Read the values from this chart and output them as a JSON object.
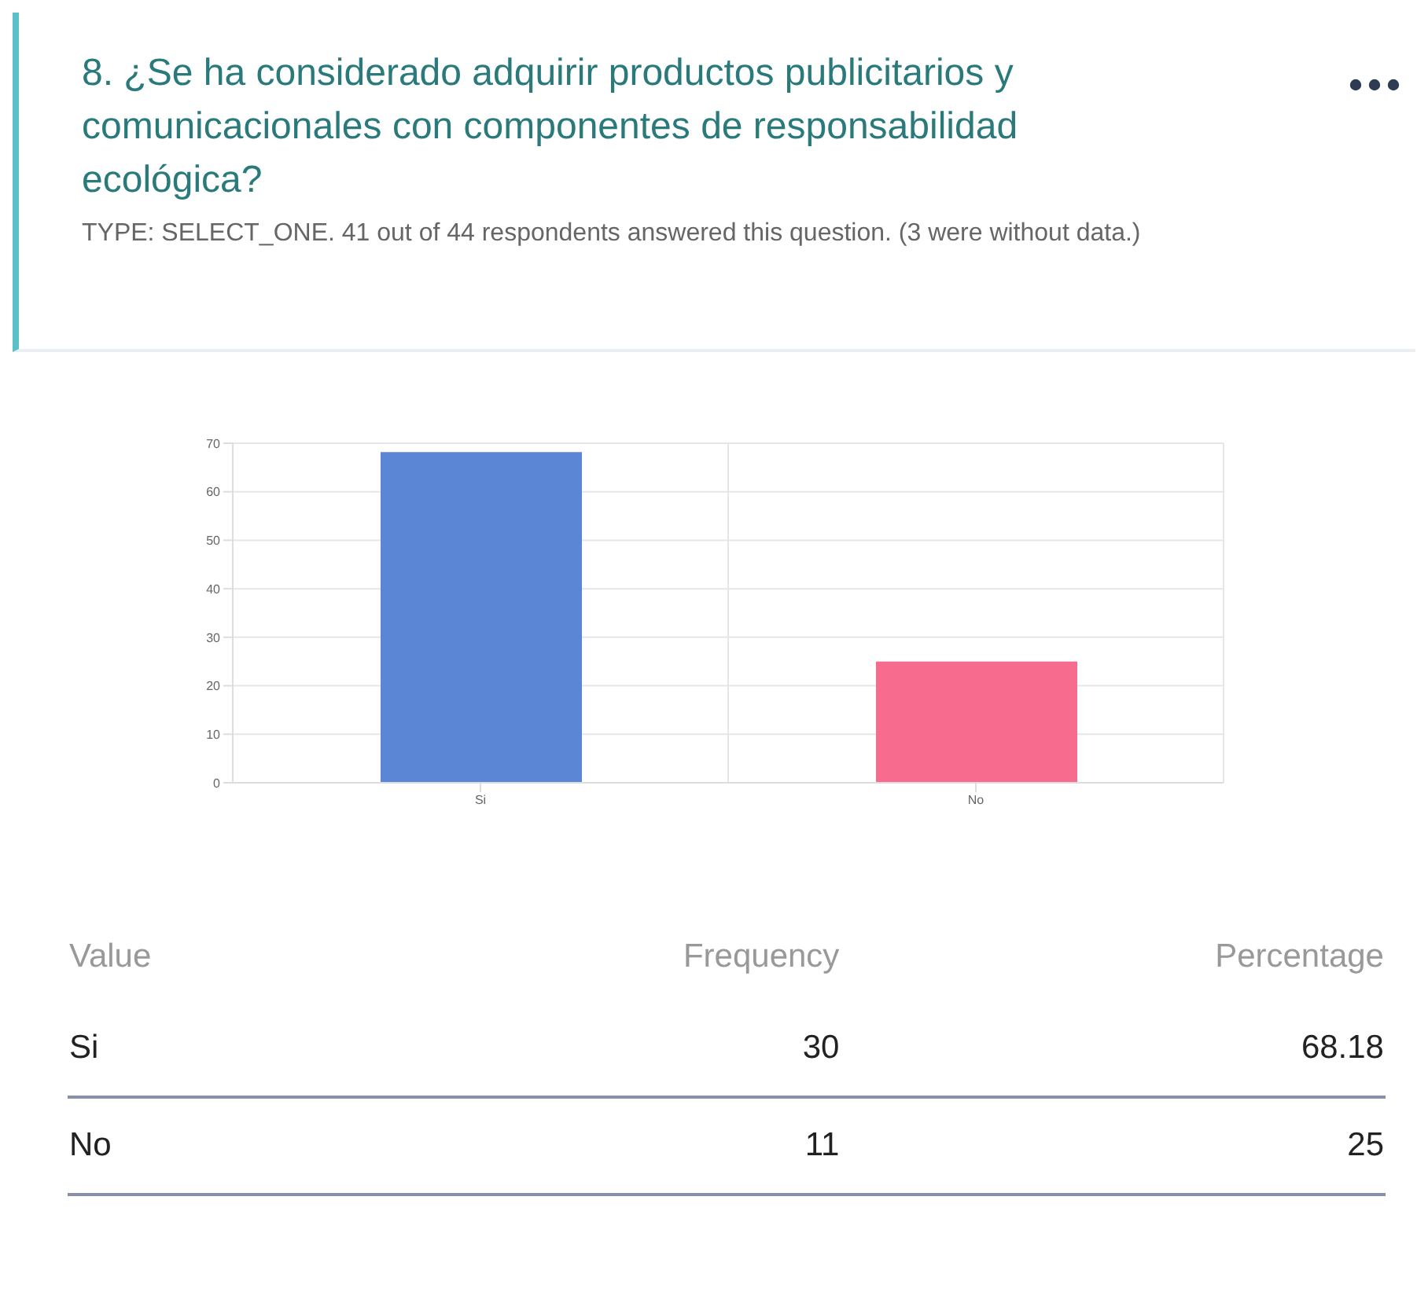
{
  "chart_data": {
    "type": "bar",
    "title": "8. ¿Se ha considerado adquirir productos publicitarios y comunicacionales con componentes de responsabilidad ecológica?",
    "subtitle": "TYPE: SELECT_ONE. 41 out of 44 respondents answered this question. (3 were without data.)",
    "categories": [
      "Si",
      "No"
    ],
    "values": [
      68.18,
      25
    ],
    "colors": [
      "#5b86d6",
      "#f76b8f"
    ],
    "ylim": [
      0,
      70
    ],
    "yticks": [
      0,
      10,
      20,
      30,
      40,
      50,
      60,
      70
    ],
    "grid": true,
    "annotations": [
      "Value",
      "Frequency",
      "Percentage",
      "30",
      "68.18",
      "11",
      "25"
    ]
  }
}
